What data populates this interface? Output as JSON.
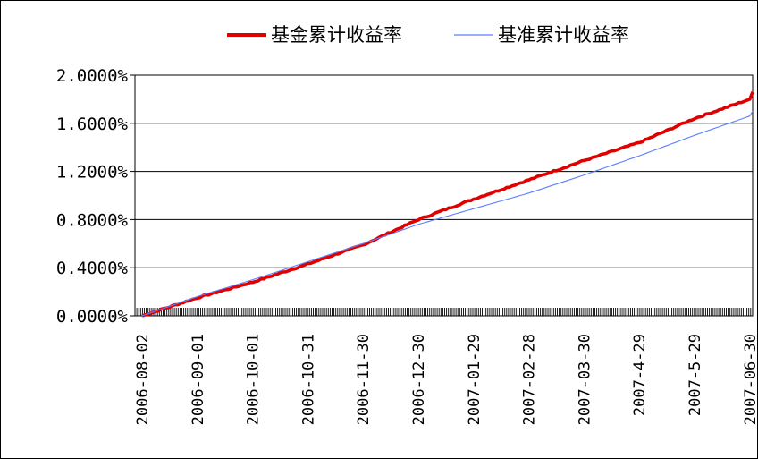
{
  "chart_data": {
    "type": "line",
    "x": [
      "2006-08-02",
      "2006-09-01",
      "2006-10-01",
      "2006-10-31",
      "2006-11-30",
      "2006-12-30",
      "2007-01-29",
      "2007-02-28",
      "2007-03-30",
      "2007-4-29",
      "2007-5-29",
      "2007-06-30"
    ],
    "series": [
      {
        "name": "基金累计收益率",
        "values": [
          0.0,
          0.15,
          0.28,
          0.43,
          0.59,
          0.8,
          0.97,
          1.13,
          1.29,
          1.44,
          1.64,
          1.8
        ],
        "end_value": 1.86,
        "color": "#e00000"
      },
      {
        "name": "基准累计收益率",
        "values": [
          0.0,
          0.16,
          0.3,
          0.45,
          0.6,
          0.76,
          0.89,
          1.02,
          1.17,
          1.33,
          1.5,
          1.66
        ],
        "end_value": 1.7,
        "color": "#5b7fff"
      }
    ],
    "yticks": [
      "0.0000%",
      "0.4000%",
      "0.8000%",
      "1.2000%",
      "1.6000%",
      "2.0000%"
    ],
    "ylim": [
      0,
      2
    ],
    "grid": "horizontal",
    "legend": "top"
  }
}
